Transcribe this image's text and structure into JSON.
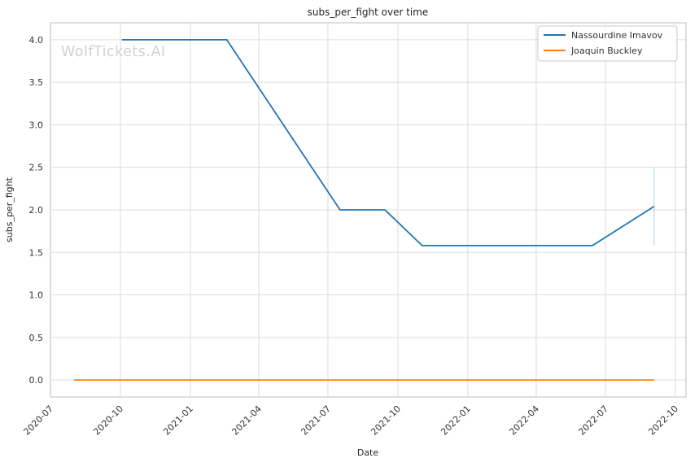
{
  "watermark": {
    "text": "WolfTickets.AI",
    "color": "#d2d2d2"
  },
  "colors": {
    "background": "#ffffff",
    "grid": "#dcdcdc",
    "spine": "#c9c9c9",
    "text": "#262626",
    "series_blue": "#1f77b4",
    "series_orange": "#ff7f0e"
  },
  "chart_data": {
    "type": "line",
    "title": "subs_per_fight over time",
    "xlabel": "Date",
    "ylabel": "subs_per_fight",
    "grid": true,
    "legend_position": "upper right",
    "xlim": [
      "2020-07-01",
      "2022-10-15"
    ],
    "ylim": [
      -0.2,
      4.2
    ],
    "x_ticks": [
      {
        "label": "2020-07",
        "date": "2020-07-01"
      },
      {
        "label": "2020-10",
        "date": "2020-10-01"
      },
      {
        "label": "2021-01",
        "date": "2021-01-01"
      },
      {
        "label": "2021-04",
        "date": "2021-04-01"
      },
      {
        "label": "2021-07",
        "date": "2021-07-01"
      },
      {
        "label": "2021-10",
        "date": "2021-10-01"
      },
      {
        "label": "2022-01",
        "date": "2022-01-01"
      },
      {
        "label": "2022-04",
        "date": "2022-04-01"
      },
      {
        "label": "2022-07",
        "date": "2022-07-01"
      },
      {
        "label": "2022-10",
        "date": "2022-10-01"
      }
    ],
    "y_ticks": [
      0.0,
      0.5,
      1.0,
      1.5,
      2.0,
      2.5,
      3.0,
      3.5,
      4.0
    ],
    "series": [
      {
        "name": "Nassourdine Imavov",
        "color": "#1f77b4",
        "points": [
          [
            "2020-10-03",
            4.0
          ],
          [
            "2021-02-18",
            4.0
          ],
          [
            "2021-07-17",
            2.0
          ],
          [
            "2021-09-14",
            2.0
          ],
          [
            "2021-11-02",
            1.58
          ],
          [
            "2022-06-14",
            1.58
          ],
          [
            "2022-09-03",
            2.04
          ]
        ]
      },
      {
        "name": "Joaquin Buckley",
        "color": "#ff7f0e",
        "points": [
          [
            "2020-08-01",
            0.0
          ],
          [
            "2022-09-03",
            0.0
          ]
        ]
      }
    ],
    "annotations": [
      {
        "type": "error-bar",
        "x": "2022-09-03",
        "y_from": 1.58,
        "y_to": 2.5,
        "color": "#1f77b4",
        "opacity": 0.35
      }
    ]
  }
}
